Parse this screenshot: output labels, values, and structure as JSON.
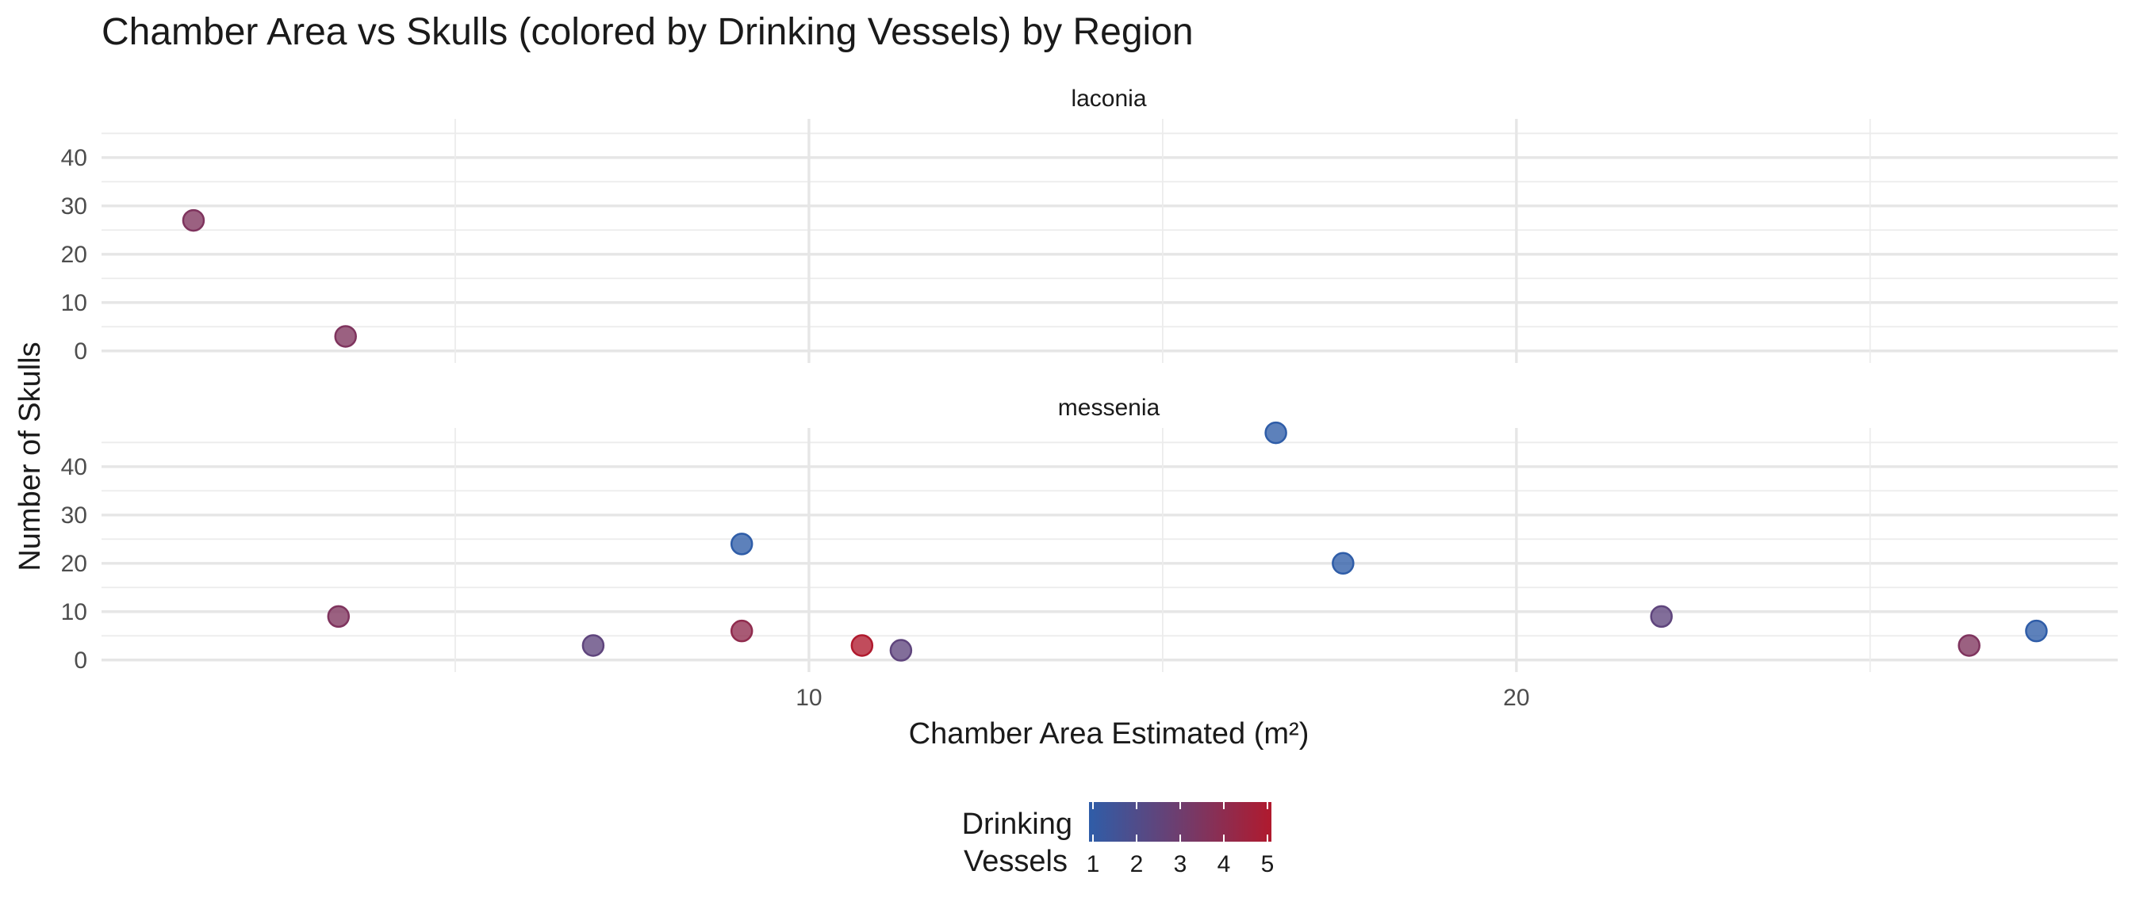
{
  "chart_data": {
    "type": "scatter",
    "title": "Chamber Area vs Skulls (colored by Drinking Vessels) by Region",
    "xlabel": "Chamber Area Estimated (m²)",
    "ylabel": "Number of Skulls",
    "xlim": [
      0,
      28.5
    ],
    "ylim": [
      -2.5,
      48
    ],
    "x_ticks": [
      10,
      20
    ],
    "y_ticks": [
      0,
      10,
      20,
      30,
      40
    ],
    "color_legend": {
      "title_lines": [
        "Drinking",
        "Vessels"
      ],
      "ticks": [
        1,
        2,
        3,
        4,
        5
      ],
      "low_color": "#2f5da8",
      "mid_color": "#6f3d6e",
      "high_color": "#b01a2e"
    },
    "panels": [
      {
        "label": "laconia",
        "points": [
          {
            "x": 1.3,
            "y": 27,
            "vessels": 3.5
          },
          {
            "x": 3.45,
            "y": 3,
            "vessels": 3.5
          }
        ]
      },
      {
        "label": "messenia",
        "points": [
          {
            "x": 16.6,
            "y": 47,
            "vessels": 1
          },
          {
            "x": 9.05,
            "y": 24,
            "vessels": 1
          },
          {
            "x": 17.55,
            "y": 20,
            "vessels": 1
          },
          {
            "x": 3.35,
            "y": 9,
            "vessels": 3.5
          },
          {
            "x": 22.05,
            "y": 9,
            "vessels": 2.5
          },
          {
            "x": 9.05,
            "y": 6,
            "vessels": 4
          },
          {
            "x": 27.35,
            "y": 6,
            "vessels": 1
          },
          {
            "x": 6.95,
            "y": 3,
            "vessels": 2.5
          },
          {
            "x": 10.75,
            "y": 3,
            "vessels": 5
          },
          {
            "x": 26.4,
            "y": 3,
            "vessels": 3.5
          },
          {
            "x": 11.3,
            "y": 2,
            "vessels": 2.5
          }
        ]
      }
    ]
  }
}
